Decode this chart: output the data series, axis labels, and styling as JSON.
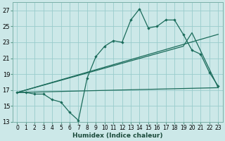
{
  "xlabel": "Humidex (Indice chaleur)",
  "bg_color": "#cce8e8",
  "grid_color": "#99cccc",
  "line_color": "#1a6b5a",
  "xlim": [
    -0.5,
    23.5
  ],
  "ylim": [
    13,
    28
  ],
  "xticks": [
    0,
    1,
    2,
    3,
    4,
    5,
    6,
    7,
    8,
    9,
    10,
    11,
    12,
    13,
    14,
    15,
    16,
    17,
    18,
    19,
    20,
    21,
    22,
    23
  ],
  "yticks": [
    13,
    15,
    17,
    19,
    21,
    23,
    25,
    27
  ],
  "series_main": [
    [
      0,
      16.7
    ],
    [
      1,
      16.7
    ],
    [
      2,
      16.5
    ],
    [
      3,
      16.5
    ],
    [
      4,
      15.8
    ],
    [
      5,
      15.5
    ],
    [
      6,
      14.2
    ],
    [
      7,
      13.2
    ],
    [
      8,
      18.5
    ],
    [
      9,
      21.2
    ],
    [
      10,
      22.5
    ],
    [
      11,
      23.2
    ],
    [
      12,
      23.0
    ],
    [
      13,
      25.8
    ],
    [
      14,
      27.2
    ],
    [
      15,
      24.8
    ],
    [
      16,
      25.0
    ],
    [
      17,
      25.8
    ],
    [
      18,
      25.8
    ],
    [
      19,
      24.0
    ],
    [
      20,
      22.0
    ],
    [
      21,
      21.5
    ],
    [
      22,
      19.2
    ],
    [
      23,
      17.5
    ]
  ],
  "series_upper": [
    [
      0,
      16.7
    ],
    [
      23,
      24.0
    ]
  ],
  "series_upper2": [
    [
      0,
      16.7
    ],
    [
      19,
      22.5
    ],
    [
      20,
      24.2
    ],
    [
      23,
      17.3
    ]
  ],
  "series_lower": [
    [
      0,
      16.7
    ],
    [
      23,
      17.3
    ]
  ]
}
